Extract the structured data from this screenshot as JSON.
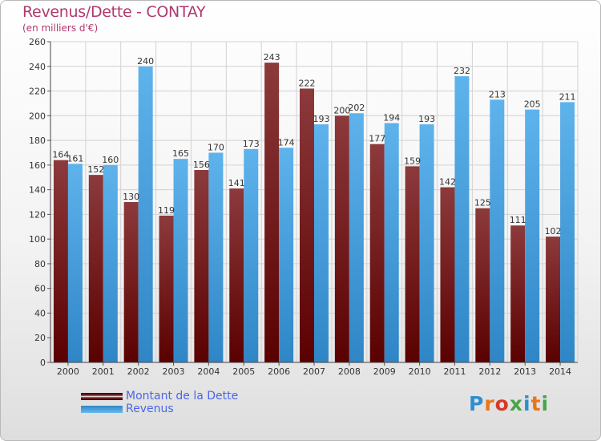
{
  "title": "Revenus/Dette - CONTAY",
  "subtitle": "(en milliers d'€)",
  "logo": {
    "text": "Proxiti",
    "letter_colors": [
      "#2d8fd0",
      "#e8761a",
      "#d63a2a",
      "#4aa34a",
      "#2d8fd0",
      "#e8761a",
      "#4aa34a"
    ]
  },
  "legend": [
    {
      "label": "Montant de la Dette",
      "color": "#6e0f10"
    },
    {
      "label": "Revenus",
      "color": "#3b9ee0"
    }
  ],
  "chart_data": {
    "type": "bar",
    "title": "Revenus/Dette - CONTAY",
    "subtitle": "(en milliers d'€)",
    "categories": [
      "2000",
      "2001",
      "2002",
      "2003",
      "2004",
      "2005",
      "2006",
      "2007",
      "2008",
      "2009",
      "2010",
      "2011",
      "2012",
      "2013",
      "2014"
    ],
    "series": [
      {
        "name": "Montant de la Dette",
        "color": "#6e0f10",
        "values": [
          164,
          152,
          130,
          119,
          156,
          141,
          243,
          222,
          200,
          177,
          159,
          142,
          125,
          111,
          102
        ]
      },
      {
        "name": "Revenus",
        "color": "#3b9ee0",
        "values": [
          161,
          160,
          240,
          165,
          170,
          173,
          174,
          193,
          202,
          194,
          193,
          232,
          213,
          205,
          211
        ]
      }
    ],
    "ylim": [
      0,
      260
    ],
    "yticks": [
      0,
      20,
      40,
      60,
      80,
      100,
      120,
      140,
      160,
      180,
      200,
      220,
      240,
      260
    ],
    "grid": true,
    "legend_position": "bottom-left"
  }
}
